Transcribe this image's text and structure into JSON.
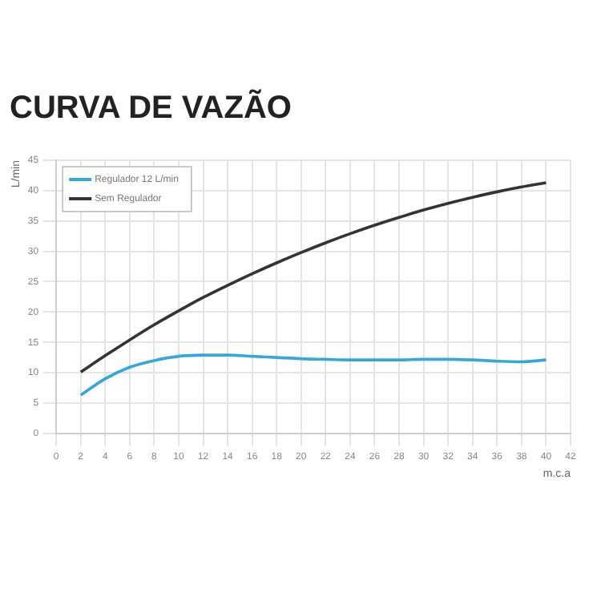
{
  "chart_data": {
    "type": "line",
    "title": "CURVA DE VAZÃO",
    "xlabel": "m.c.a",
    "ylabel": "L/min",
    "x": [
      2,
      4,
      6,
      8,
      10,
      12,
      14,
      16,
      18,
      20,
      22,
      24,
      26,
      28,
      30,
      32,
      34,
      36,
      38,
      40
    ],
    "series": [
      {
        "name": "Regulador 12 L/min",
        "color": "#3aa6d8",
        "values": [
          6.3,
          9.0,
          10.9,
          12.0,
          12.7,
          12.9,
          12.9,
          12.7,
          12.5,
          12.3,
          12.2,
          12.1,
          12.1,
          12.1,
          12.2,
          12.2,
          12.1,
          11.9,
          11.8,
          12.1
        ]
      },
      {
        "name": "Sem Regulador",
        "color": "#333333",
        "values": [
          10.1,
          12.8,
          15.4,
          17.9,
          20.2,
          22.4,
          24.4,
          26.3,
          28.1,
          29.8,
          31.4,
          32.9,
          34.3,
          35.6,
          36.8,
          37.9,
          38.9,
          39.8,
          40.6,
          41.3
        ]
      }
    ],
    "xlim": [
      0,
      42
    ],
    "xticks": [
      0,
      2,
      4,
      6,
      8,
      10,
      12,
      14,
      16,
      18,
      20,
      22,
      24,
      26,
      28,
      30,
      32,
      34,
      36,
      38,
      40,
      42
    ],
    "ylim": [
      0,
      45
    ],
    "yticks": [
      0,
      5,
      10,
      15,
      20,
      25,
      30,
      35,
      40,
      45
    ],
    "grid": true,
    "legend": "top left",
    "marker": "none",
    "line_style": "solid"
  }
}
